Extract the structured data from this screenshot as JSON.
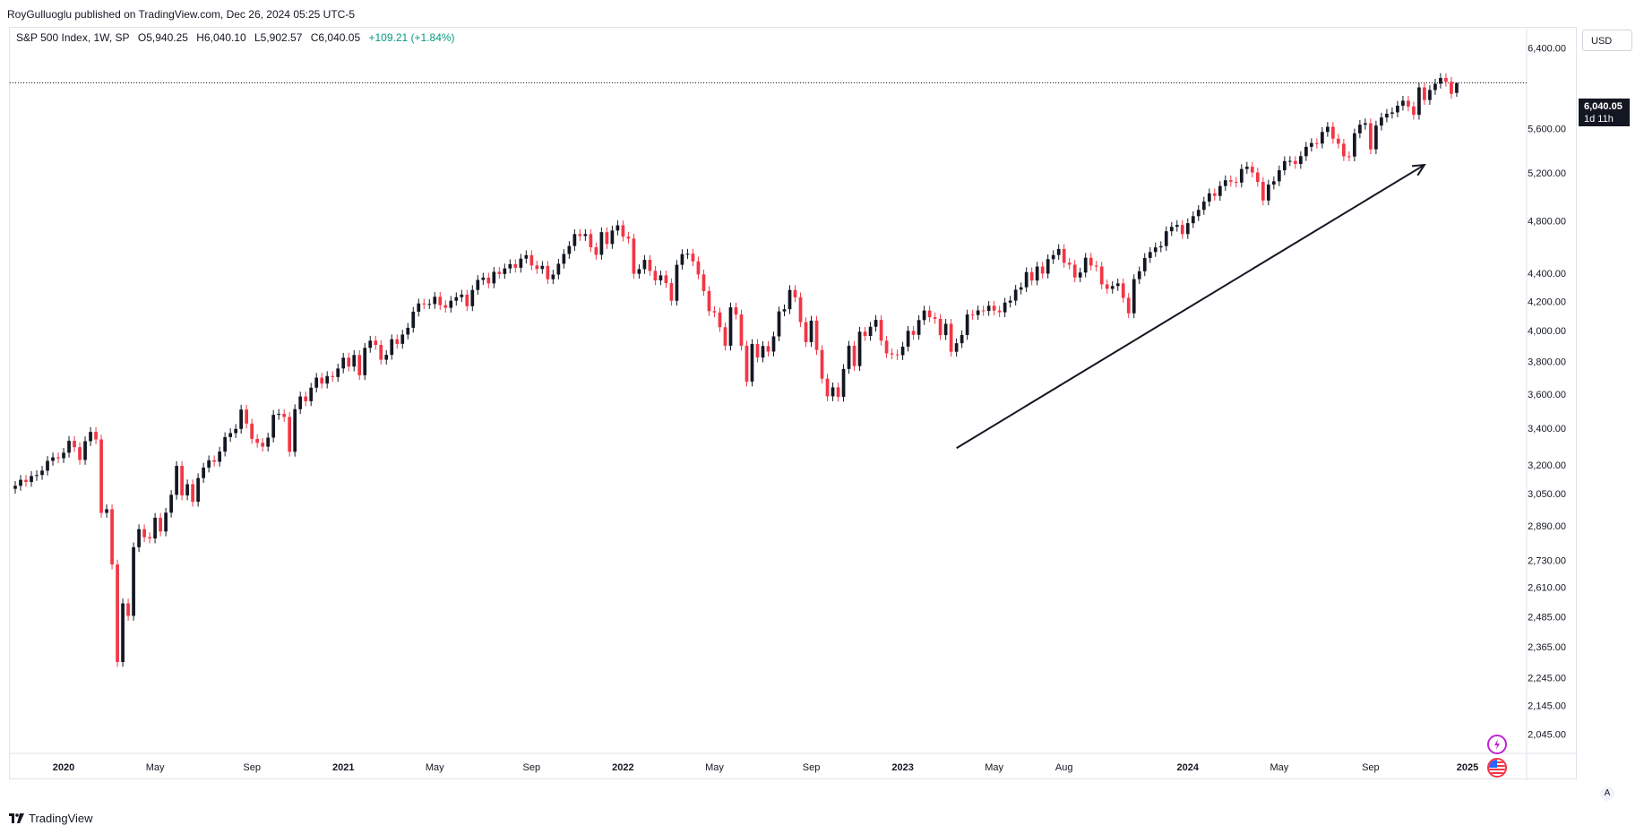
{
  "publisher_line": "RoyGulluoglu published on TradingView.com, Dec 26, 2024 05:25 UTC-5",
  "legend": {
    "symbol": "S&P 500 Index, 1W, SP",
    "open": "O5,940.25",
    "high": "H6,040.10",
    "low": "L5,902.57",
    "close": "C6,040.05",
    "change": "+109.21 (+1.84%)"
  },
  "currency": "USD",
  "last_price": {
    "price": "6,040.05",
    "countdown": "1d 11h"
  },
  "auto_label": "A",
  "brand": "TradingView",
  "colors": {
    "up": "#131722",
    "down": "#f23645",
    "change": "#089981",
    "line": "#131722"
  },
  "chart_data": {
    "type": "candlestick",
    "y_scale": "log",
    "ylim": [
      1980,
      6620
    ],
    "xlim": [
      "2019-10-27",
      "2025-03-23"
    ],
    "price_ticks": [
      "6,400.00",
      "5,600.00",
      "5,200.00",
      "4,800.00",
      "4,400.00",
      "4,200.00",
      "4,000.00",
      "3,800.00",
      "3,600.00",
      "3,400.00",
      "3,200.00",
      "3,050.00",
      "2,890.00",
      "2,730.00",
      "2,610.00",
      "2,485.00",
      "2,365.00",
      "2,245.00",
      "2,145.00",
      "2,045.00"
    ],
    "time_ticks": [
      {
        "label": "2020",
        "date": "2020-01-05",
        "bold": true
      },
      {
        "label": "May",
        "date": "2020-05-03",
        "bold": false
      },
      {
        "label": "Sep",
        "date": "2020-09-06",
        "bold": false
      },
      {
        "label": "2021",
        "date": "2021-01-03",
        "bold": true
      },
      {
        "label": "May",
        "date": "2021-05-02",
        "bold": false
      },
      {
        "label": "Sep",
        "date": "2021-09-05",
        "bold": false
      },
      {
        "label": "2022",
        "date": "2022-01-02",
        "bold": true
      },
      {
        "label": "May",
        "date": "2022-05-01",
        "bold": false
      },
      {
        "label": "Sep",
        "date": "2022-09-04",
        "bold": false
      },
      {
        "label": "2023",
        "date": "2023-01-01",
        "bold": true
      },
      {
        "label": "May",
        "date": "2023-04-30",
        "bold": false
      },
      {
        "label": "Aug",
        "date": "2023-07-30",
        "bold": false
      },
      {
        "label": "2024",
        "date": "2024-01-07",
        "bold": true
      },
      {
        "label": "May",
        "date": "2024-05-05",
        "bold": false
      },
      {
        "label": "Sep",
        "date": "2024-09-01",
        "bold": false
      },
      {
        "label": "2025",
        "date": "2025-01-05",
        "bold": true
      }
    ],
    "last_close": 6040.05,
    "candles": [
      {
        "d": "2019-11-03",
        "c": 3090
      },
      {
        "d": "2019-11-10",
        "c": 3121
      },
      {
        "d": "2019-11-17",
        "c": 3110
      },
      {
        "d": "2019-11-24",
        "c": 3141
      },
      {
        "d": "2019-12-01",
        "c": 3146
      },
      {
        "d": "2019-12-08",
        "c": 3169
      },
      {
        "d": "2019-12-15",
        "c": 3221
      },
      {
        "d": "2019-12-22",
        "c": 3240
      },
      {
        "d": "2019-12-29",
        "c": 3235
      },
      {
        "d": "2020-01-05",
        "c": 3265
      },
      {
        "d": "2020-01-12",
        "c": 3330
      },
      {
        "d": "2020-01-19",
        "c": 3295
      },
      {
        "d": "2020-01-26",
        "c": 3226
      },
      {
        "d": "2020-02-02",
        "c": 3328
      },
      {
        "d": "2020-02-09",
        "c": 3380
      },
      {
        "d": "2020-02-16",
        "c": 3338
      },
      {
        "d": "2020-02-23",
        "c": 2954
      },
      {
        "d": "2020-03-01",
        "c": 2972
      },
      {
        "d": "2020-03-08",
        "c": 2711
      },
      {
        "d": "2020-03-15",
        "c": 2305
      },
      {
        "d": "2020-03-22",
        "c": 2541
      },
      {
        "d": "2020-03-29",
        "c": 2489
      },
      {
        "d": "2020-04-05",
        "c": 2790
      },
      {
        "d": "2020-04-12",
        "c": 2875
      },
      {
        "d": "2020-04-19",
        "c": 2837
      },
      {
        "d": "2020-04-26",
        "c": 2831
      },
      {
        "d": "2020-05-03",
        "c": 2930
      },
      {
        "d": "2020-05-10",
        "c": 2864
      },
      {
        "d": "2020-05-17",
        "c": 2955
      },
      {
        "d": "2020-05-24",
        "c": 3044
      },
      {
        "d": "2020-05-31",
        "c": 3194
      },
      {
        "d": "2020-06-07",
        "c": 3041
      },
      {
        "d": "2020-06-14",
        "c": 3098
      },
      {
        "d": "2020-06-21",
        "c": 3009
      },
      {
        "d": "2020-06-28",
        "c": 3130
      },
      {
        "d": "2020-07-05",
        "c": 3185
      },
      {
        "d": "2020-07-12",
        "c": 3224
      },
      {
        "d": "2020-07-19",
        "c": 3216
      },
      {
        "d": "2020-07-26",
        "c": 3271
      },
      {
        "d": "2020-08-02",
        "c": 3351
      },
      {
        "d": "2020-08-09",
        "c": 3373
      },
      {
        "d": "2020-08-16",
        "c": 3397
      },
      {
        "d": "2020-08-23",
        "c": 3508
      },
      {
        "d": "2020-08-30",
        "c": 3427
      },
      {
        "d": "2020-09-06",
        "c": 3341
      },
      {
        "d": "2020-09-13",
        "c": 3319
      },
      {
        "d": "2020-09-20",
        "c": 3298
      },
      {
        "d": "2020-09-27",
        "c": 3348
      },
      {
        "d": "2020-10-04",
        "c": 3477
      },
      {
        "d": "2020-10-11",
        "c": 3483
      },
      {
        "d": "2020-10-18",
        "c": 3465
      },
      {
        "d": "2020-10-25",
        "c": 3270
      },
      {
        "d": "2020-11-01",
        "c": 3510
      },
      {
        "d": "2020-11-08",
        "c": 3585
      },
      {
        "d": "2020-11-15",
        "c": 3557
      },
      {
        "d": "2020-11-22",
        "c": 3638
      },
      {
        "d": "2020-11-29",
        "c": 3699
      },
      {
        "d": "2020-12-06",
        "c": 3663
      },
      {
        "d": "2020-12-13",
        "c": 3709
      },
      {
        "d": "2020-12-20",
        "c": 3703
      },
      {
        "d": "2020-12-27",
        "c": 3756
      },
      {
        "d": "2021-01-03",
        "c": 3824
      },
      {
        "d": "2021-01-10",
        "c": 3768
      },
      {
        "d": "2021-01-17",
        "c": 3841
      },
      {
        "d": "2021-01-24",
        "c": 3714
      },
      {
        "d": "2021-01-31",
        "c": 3887
      },
      {
        "d": "2021-02-07",
        "c": 3934
      },
      {
        "d": "2021-02-14",
        "c": 3906
      },
      {
        "d": "2021-02-21",
        "c": 3811
      },
      {
        "d": "2021-02-28",
        "c": 3842
      },
      {
        "d": "2021-03-07",
        "c": 3943
      },
      {
        "d": "2021-03-14",
        "c": 3913
      },
      {
        "d": "2021-03-21",
        "c": 3974
      },
      {
        "d": "2021-03-28",
        "c": 4019
      },
      {
        "d": "2021-04-04",
        "c": 4128
      },
      {
        "d": "2021-04-11",
        "c": 4185
      },
      {
        "d": "2021-04-18",
        "c": 4180
      },
      {
        "d": "2021-04-25",
        "c": 4181
      },
      {
        "d": "2021-05-02",
        "c": 4232
      },
      {
        "d": "2021-05-09",
        "c": 4173
      },
      {
        "d": "2021-05-16",
        "c": 4155
      },
      {
        "d": "2021-05-23",
        "c": 4204
      },
      {
        "d": "2021-05-30",
        "c": 4229
      },
      {
        "d": "2021-06-06",
        "c": 4247
      },
      {
        "d": "2021-06-13",
        "c": 4166
      },
      {
        "d": "2021-06-20",
        "c": 4280
      },
      {
        "d": "2021-06-27",
        "c": 4352
      },
      {
        "d": "2021-07-04",
        "c": 4369
      },
      {
        "d": "2021-07-11",
        "c": 4327
      },
      {
        "d": "2021-07-18",
        "c": 4411
      },
      {
        "d": "2021-07-25",
        "c": 4395
      },
      {
        "d": "2021-08-01",
        "c": 4436
      },
      {
        "d": "2021-08-08",
        "c": 4468
      },
      {
        "d": "2021-08-15",
        "c": 4441
      },
      {
        "d": "2021-08-22",
        "c": 4509
      },
      {
        "d": "2021-08-29",
        "c": 4535
      },
      {
        "d": "2021-09-05",
        "c": 4458
      },
      {
        "d": "2021-09-12",
        "c": 4432
      },
      {
        "d": "2021-09-19",
        "c": 4455
      },
      {
        "d": "2021-09-26",
        "c": 4357
      },
      {
        "d": "2021-10-03",
        "c": 4391
      },
      {
        "d": "2021-10-10",
        "c": 4471
      },
      {
        "d": "2021-10-17",
        "c": 4544
      },
      {
        "d": "2021-10-24",
        "c": 4605
      },
      {
        "d": "2021-10-31",
        "c": 4697
      },
      {
        "d": "2021-11-07",
        "c": 4682
      },
      {
        "d": "2021-11-14",
        "c": 4697
      },
      {
        "d": "2021-11-21",
        "c": 4595
      },
      {
        "d": "2021-11-28",
        "c": 4538
      },
      {
        "d": "2021-12-05",
        "c": 4712
      },
      {
        "d": "2021-12-12",
        "c": 4620
      },
      {
        "d": "2021-12-19",
        "c": 4725
      },
      {
        "d": "2021-12-26",
        "c": 4766
      },
      {
        "d": "2022-01-02",
        "c": 4677
      },
      {
        "d": "2022-01-09",
        "c": 4662
      },
      {
        "d": "2022-01-16",
        "c": 4397
      },
      {
        "d": "2022-01-23",
        "c": 4431
      },
      {
        "d": "2022-01-30",
        "c": 4500
      },
      {
        "d": "2022-02-06",
        "c": 4418
      },
      {
        "d": "2022-02-13",
        "c": 4349
      },
      {
        "d": "2022-02-20",
        "c": 4385
      },
      {
        "d": "2022-02-27",
        "c": 4329
      },
      {
        "d": "2022-03-06",
        "c": 4204
      },
      {
        "d": "2022-03-13",
        "c": 4463
      },
      {
        "d": "2022-03-20",
        "c": 4543
      },
      {
        "d": "2022-03-27",
        "c": 4546
      },
      {
        "d": "2022-04-03",
        "c": 4488
      },
      {
        "d": "2022-04-10",
        "c": 4392
      },
      {
        "d": "2022-04-17",
        "c": 4272
      },
      {
        "d": "2022-04-24",
        "c": 4132
      },
      {
        "d": "2022-05-01",
        "c": 4123
      },
      {
        "d": "2022-05-08",
        "c": 4023
      },
      {
        "d": "2022-05-15",
        "c": 3901
      },
      {
        "d": "2022-05-22",
        "c": 4158
      },
      {
        "d": "2022-05-29",
        "c": 4109
      },
      {
        "d": "2022-06-05",
        "c": 3901
      },
      {
        "d": "2022-06-12",
        "c": 3675
      },
      {
        "d": "2022-06-19",
        "c": 3912
      },
      {
        "d": "2022-06-26",
        "c": 3825
      },
      {
        "d": "2022-07-03",
        "c": 3899
      },
      {
        "d": "2022-07-10",
        "c": 3863
      },
      {
        "d": "2022-07-17",
        "c": 3962
      },
      {
        "d": "2022-07-24",
        "c": 4130
      },
      {
        "d": "2022-07-31",
        "c": 4145
      },
      {
        "d": "2022-08-07",
        "c": 4280
      },
      {
        "d": "2022-08-14",
        "c": 4228
      },
      {
        "d": "2022-08-21",
        "c": 4057
      },
      {
        "d": "2022-08-28",
        "c": 3924
      },
      {
        "d": "2022-09-04",
        "c": 4067
      },
      {
        "d": "2022-09-11",
        "c": 3873
      },
      {
        "d": "2022-09-18",
        "c": 3693
      },
      {
        "d": "2022-09-25",
        "c": 3586
      },
      {
        "d": "2022-10-02",
        "c": 3640
      },
      {
        "d": "2022-10-09",
        "c": 3583
      },
      {
        "d": "2022-10-16",
        "c": 3753
      },
      {
        "d": "2022-10-23",
        "c": 3901
      },
      {
        "d": "2022-10-30",
        "c": 3771
      },
      {
        "d": "2022-11-06",
        "c": 3993
      },
      {
        "d": "2022-11-13",
        "c": 3965
      },
      {
        "d": "2022-11-20",
        "c": 4026
      },
      {
        "d": "2022-11-27",
        "c": 4072
      },
      {
        "d": "2022-12-04",
        "c": 3934
      },
      {
        "d": "2022-12-11",
        "c": 3852
      },
      {
        "d": "2022-12-18",
        "c": 3845
      },
      {
        "d": "2022-12-25",
        "c": 3840
      },
      {
        "d": "2023-01-01",
        "c": 3895
      },
      {
        "d": "2023-01-08",
        "c": 3999
      },
      {
        "d": "2023-01-15",
        "c": 3972
      },
      {
        "d": "2023-01-22",
        "c": 4071
      },
      {
        "d": "2023-01-29",
        "c": 4136
      },
      {
        "d": "2023-02-05",
        "c": 4090
      },
      {
        "d": "2023-02-12",
        "c": 4079
      },
      {
        "d": "2023-02-19",
        "c": 3970
      },
      {
        "d": "2023-02-26",
        "c": 4046
      },
      {
        "d": "2023-03-05",
        "c": 3862
      },
      {
        "d": "2023-03-12",
        "c": 3917
      },
      {
        "d": "2023-03-19",
        "c": 3971
      },
      {
        "d": "2023-03-26",
        "c": 4109
      },
      {
        "d": "2023-04-02",
        "c": 4105
      },
      {
        "d": "2023-04-09",
        "c": 4137
      },
      {
        "d": "2023-04-16",
        "c": 4133
      },
      {
        "d": "2023-04-23",
        "c": 4169
      },
      {
        "d": "2023-04-30",
        "c": 4136
      },
      {
        "d": "2023-05-07",
        "c": 4124
      },
      {
        "d": "2023-05-14",
        "c": 4191
      },
      {
        "d": "2023-05-21",
        "c": 4205
      },
      {
        "d": "2023-05-28",
        "c": 4282
      },
      {
        "d": "2023-06-04",
        "c": 4299
      },
      {
        "d": "2023-06-11",
        "c": 4409
      },
      {
        "d": "2023-06-18",
        "c": 4348
      },
      {
        "d": "2023-06-25",
        "c": 4450
      },
      {
        "d": "2023-07-02",
        "c": 4398
      },
      {
        "d": "2023-07-09",
        "c": 4505
      },
      {
        "d": "2023-07-16",
        "c": 4536
      },
      {
        "d": "2023-07-23",
        "c": 4582
      },
      {
        "d": "2023-07-30",
        "c": 4478
      },
      {
        "d": "2023-08-06",
        "c": 4464
      },
      {
        "d": "2023-08-13",
        "c": 4370
      },
      {
        "d": "2023-08-20",
        "c": 4406
      },
      {
        "d": "2023-08-27",
        "c": 4516
      },
      {
        "d": "2023-09-03",
        "c": 4457
      },
      {
        "d": "2023-09-10",
        "c": 4450
      },
      {
        "d": "2023-09-17",
        "c": 4320
      },
      {
        "d": "2023-09-24",
        "c": 4288
      },
      {
        "d": "2023-10-01",
        "c": 4308
      },
      {
        "d": "2023-10-08",
        "c": 4327
      },
      {
        "d": "2023-10-15",
        "c": 4224
      },
      {
        "d": "2023-10-22",
        "c": 4117
      },
      {
        "d": "2023-10-29",
        "c": 4358
      },
      {
        "d": "2023-11-05",
        "c": 4415
      },
      {
        "d": "2023-11-12",
        "c": 4514
      },
      {
        "d": "2023-11-19",
        "c": 4559
      },
      {
        "d": "2023-11-26",
        "c": 4594
      },
      {
        "d": "2023-12-03",
        "c": 4604
      },
      {
        "d": "2023-12-10",
        "c": 4719
      },
      {
        "d": "2023-12-17",
        "c": 4754
      },
      {
        "d": "2023-12-24",
        "c": 4769
      },
      {
        "d": "2023-12-31",
        "c": 4697
      },
      {
        "d": "2024-01-07",
        "c": 4783
      },
      {
        "d": "2024-01-14",
        "c": 4839
      },
      {
        "d": "2024-01-21",
        "c": 4890
      },
      {
        "d": "2024-01-28",
        "c": 4958
      },
      {
        "d": "2024-02-04",
        "c": 5026
      },
      {
        "d": "2024-02-11",
        "c": 5005
      },
      {
        "d": "2024-02-18",
        "c": 5088
      },
      {
        "d": "2024-02-25",
        "c": 5137
      },
      {
        "d": "2024-03-03",
        "c": 5123
      },
      {
        "d": "2024-03-10",
        "c": 5117
      },
      {
        "d": "2024-03-17",
        "c": 5234
      },
      {
        "d": "2024-03-24",
        "c": 5254
      },
      {
        "d": "2024-03-31",
        "c": 5204
      },
      {
        "d": "2024-04-07",
        "c": 5123
      },
      {
        "d": "2024-04-14",
        "c": 4967
      },
      {
        "d": "2024-04-21",
        "c": 5100
      },
      {
        "d": "2024-04-28",
        "c": 5128
      },
      {
        "d": "2024-05-05",
        "c": 5223
      },
      {
        "d": "2024-05-12",
        "c": 5303
      },
      {
        "d": "2024-05-19",
        "c": 5305
      },
      {
        "d": "2024-05-26",
        "c": 5278
      },
      {
        "d": "2024-06-02",
        "c": 5347
      },
      {
        "d": "2024-06-09",
        "c": 5431
      },
      {
        "d": "2024-06-16",
        "c": 5465
      },
      {
        "d": "2024-06-23",
        "c": 5460
      },
      {
        "d": "2024-06-30",
        "c": 5567
      },
      {
        "d": "2024-07-07",
        "c": 5615
      },
      {
        "d": "2024-07-14",
        "c": 5505
      },
      {
        "d": "2024-07-21",
        "c": 5459
      },
      {
        "d": "2024-07-28",
        "c": 5346
      },
      {
        "d": "2024-08-04",
        "c": 5344
      },
      {
        "d": "2024-08-11",
        "c": 5554
      },
      {
        "d": "2024-08-18",
        "c": 5634
      },
      {
        "d": "2024-08-25",
        "c": 5648
      },
      {
        "d": "2024-09-01",
        "c": 5408
      },
      {
        "d": "2024-09-08",
        "c": 5626
      },
      {
        "d": "2024-09-15",
        "c": 5702
      },
      {
        "d": "2024-09-22",
        "c": 5738
      },
      {
        "d": "2024-09-29",
        "c": 5751
      },
      {
        "d": "2024-10-06",
        "c": 5815
      },
      {
        "d": "2024-10-13",
        "c": 5864
      },
      {
        "d": "2024-10-20",
        "c": 5808
      },
      {
        "d": "2024-10-27",
        "c": 5728
      },
      {
        "d": "2024-11-03",
        "c": 5995
      },
      {
        "d": "2024-11-10",
        "c": 5870
      },
      {
        "d": "2024-11-17",
        "c": 5969
      },
      {
        "d": "2024-11-24",
        "c": 6032
      },
      {
        "d": "2024-12-01",
        "c": 6090
      },
      {
        "d": "2024-12-08",
        "c": 6051
      },
      {
        "d": "2024-12-15",
        "c": 5931
      },
      {
        "d": "2024-12-22",
        "o": 5940.25,
        "h": 6040.1,
        "l": 5902.57,
        "c": 6040.05
      }
    ],
    "arrow": {
      "from": {
        "date": "2023-03-12",
        "price": 3290
      },
      "to": {
        "date": "2024-11-10",
        "price": 5270
      }
    }
  }
}
